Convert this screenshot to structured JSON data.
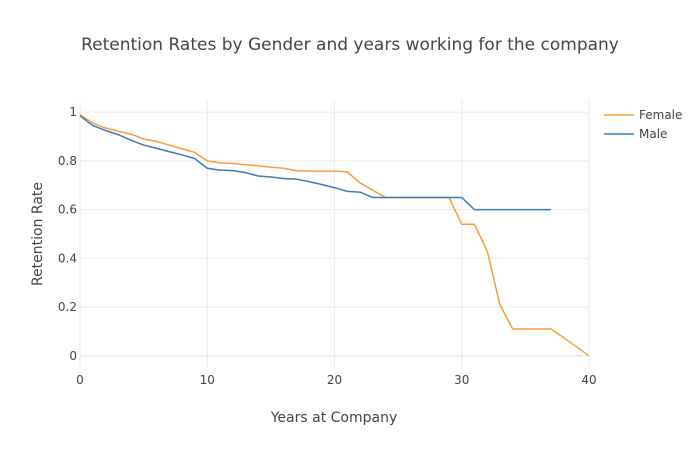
{
  "chart_data": {
    "type": "line",
    "title": "Retention Rates by Gender and years working for the company",
    "xlabel": "Years at Company",
    "ylabel": "Retention Rate",
    "xlim": [
      0,
      40
    ],
    "ylim": [
      -0.05,
      1.05
    ],
    "x_ticks": [
      "0",
      "10",
      "20",
      "30",
      "40"
    ],
    "y_ticks": [
      "0",
      "0.2",
      "0.4",
      "0.6",
      "0.8",
      "1"
    ],
    "grid": true,
    "legend_position": "top-right",
    "series": [
      {
        "name": "Female",
        "color": "#ff9933",
        "x": [
          0,
          1,
          2,
          3,
          4,
          5,
          6,
          7,
          8,
          9,
          10,
          11,
          12,
          13,
          14,
          15,
          16,
          17,
          18,
          19,
          20,
          21,
          22,
          23,
          24,
          25,
          26,
          27,
          28,
          29,
          30,
          31,
          32,
          33,
          34,
          35,
          36,
          37,
          38,
          39,
          40
        ],
        "y": [
          0.99,
          0.955,
          0.935,
          0.922,
          0.91,
          0.89,
          0.88,
          0.865,
          0.85,
          0.835,
          0.8,
          0.792,
          0.79,
          0.784,
          0.78,
          0.774,
          0.77,
          0.76,
          0.758,
          0.758,
          0.758,
          0.755,
          0.71,
          0.68,
          0.65,
          0.65,
          0.65,
          0.65,
          0.65,
          0.65,
          0.54,
          0.54,
          0.43,
          0.21,
          0.11,
          0.11,
          0.11,
          0.11,
          0.075,
          0.038,
          0.0
        ]
      },
      {
        "name": "Male",
        "color": "#3a7cb8",
        "x": [
          0,
          1,
          2,
          3,
          4,
          5,
          6,
          7,
          8,
          9,
          10,
          11,
          12,
          13,
          14,
          15,
          16,
          17,
          18,
          19,
          20,
          21,
          22,
          23,
          24,
          25,
          26,
          27,
          28,
          29,
          30,
          31,
          32,
          33,
          34,
          35,
          36,
          37
        ],
        "y": [
          0.985,
          0.945,
          0.925,
          0.908,
          0.885,
          0.865,
          0.852,
          0.838,
          0.825,
          0.81,
          0.77,
          0.762,
          0.76,
          0.752,
          0.738,
          0.734,
          0.728,
          0.725,
          0.715,
          0.703,
          0.69,
          0.675,
          0.672,
          0.65,
          0.65,
          0.65,
          0.65,
          0.65,
          0.65,
          0.65,
          0.65,
          0.6,
          0.6,
          0.6,
          0.6,
          0.6,
          0.6,
          0.6
        ]
      }
    ]
  }
}
